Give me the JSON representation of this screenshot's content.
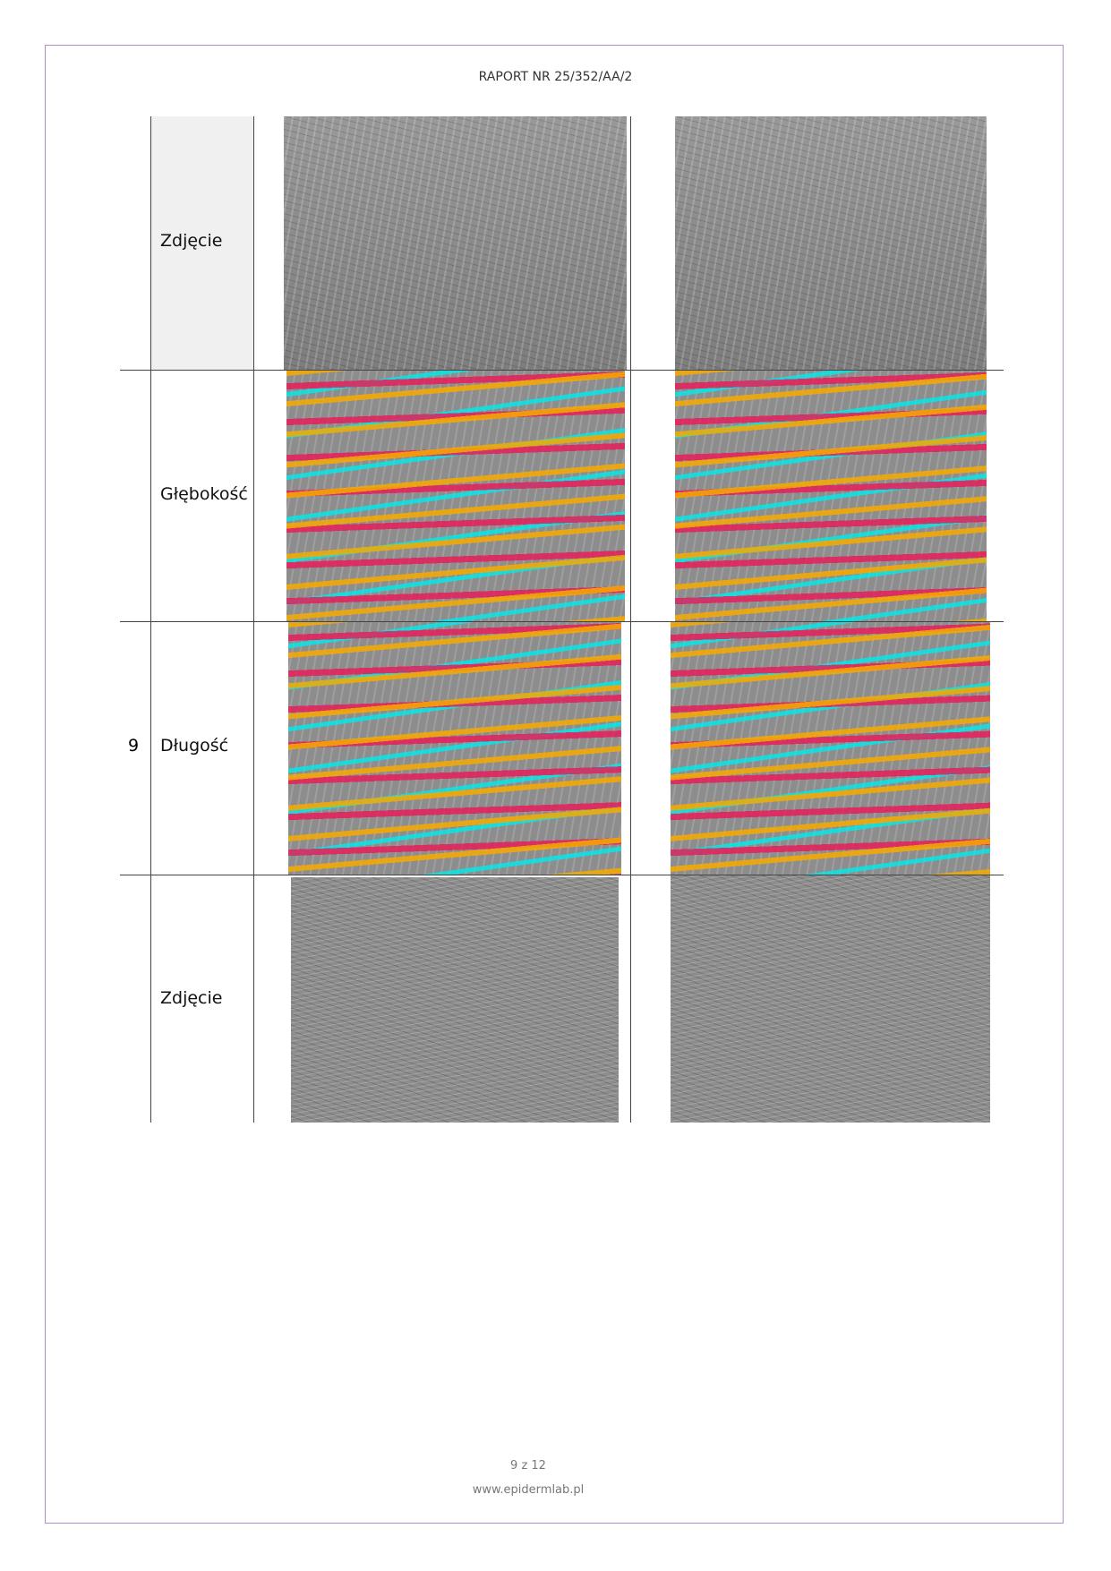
{
  "header": {
    "title": "RAPORT NR 25/352/AA/2"
  },
  "table": {
    "row_number": "9",
    "rows": [
      {
        "label": "Zdjęcie"
      },
      {
        "label": "Głębokość"
      },
      {
        "label": "Długość"
      },
      {
        "label": "Zdjęcie"
      }
    ]
  },
  "footer": {
    "page": "9 z 12",
    "website": "www.epidermlab.pl"
  }
}
